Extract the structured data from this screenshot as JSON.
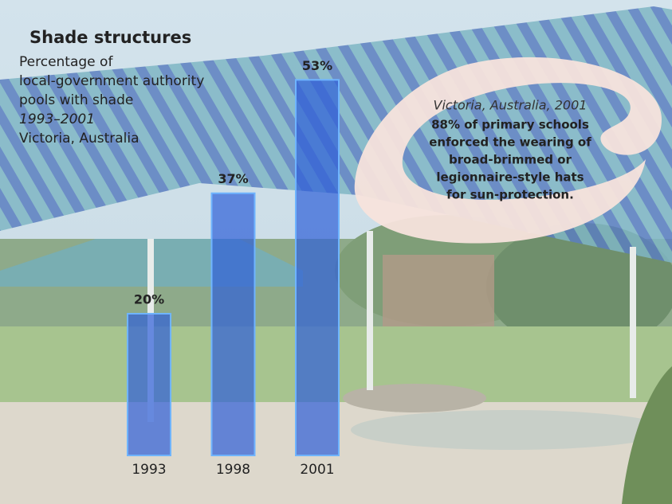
{
  "chart_data": {
    "type": "bar",
    "title": "Shade structures",
    "subtitle": [
      "Percentage of",
      "local-government authority",
      "pools with shade",
      "1993–2001",
      "Victoria, Australia"
    ],
    "categories": [
      "1993",
      "1998",
      "2001"
    ],
    "values": [
      20,
      37,
      53
    ],
    "value_labels": [
      "20%",
      "37%",
      "53%"
    ],
    "color": "#2f5fd8",
    "annotation": {
      "heading": "Victoria, Australia, 2001",
      "lines": [
        "88% of primary schools",
        "enforced the wearing of",
        "broad-brimmed or",
        "legionnaire-style hats",
        "for sun-protection."
      ]
    }
  }
}
